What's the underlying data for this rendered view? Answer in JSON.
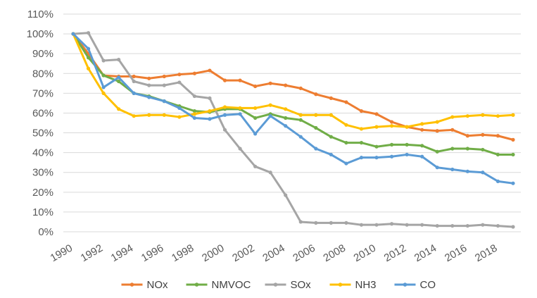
{
  "chart_data": {
    "type": "line",
    "title": "",
    "xlabel": "",
    "ylabel": "",
    "ylim": [
      0,
      110
    ],
    "y_ticks": [
      "0%",
      "10%",
      "20%",
      "30%",
      "40%",
      "50%",
      "60%",
      "70%",
      "80%",
      "90%",
      "100%",
      "110%"
    ],
    "x": [
      1990,
      1991,
      1992,
      1993,
      1994,
      1995,
      1996,
      1997,
      1998,
      1999,
      2000,
      2001,
      2002,
      2003,
      2004,
      2005,
      2006,
      2007,
      2008,
      2009,
      2010,
      2011,
      2012,
      2013,
      2014,
      2015,
      2016,
      2017,
      2018,
      2019
    ],
    "x_tick_labels": [
      "1990",
      "1992",
      "1994",
      "1996",
      "1998",
      "2000",
      "2002",
      "2004",
      "2006",
      "2008",
      "2010",
      "2012",
      "2014",
      "2016",
      "2018"
    ],
    "grid": true,
    "legend_position": "bottom",
    "series": [
      {
        "name": "NOx",
        "color": "#ED7D31",
        "values": [
          100,
          90,
          79,
          78.5,
          78.5,
          77.5,
          78.5,
          79.5,
          80,
          81.5,
          76.5,
          76.5,
          73.5,
          75,
          74,
          72.5,
          69.5,
          67.5,
          65.5,
          61,
          59.5,
          55.5,
          53,
          51.5,
          51,
          51.5,
          48.5,
          49,
          48.5,
          46.5
        ]
      },
      {
        "name": "NMVOC",
        "color": "#70AD47",
        "values": [
          100,
          88,
          79,
          76,
          70,
          68.5,
          66,
          63.5,
          61,
          60.5,
          62,
          62,
          57.5,
          59.5,
          57.5,
          56.5,
          52.5,
          48,
          45,
          45,
          43,
          44,
          44,
          43.5,
          40.5,
          42,
          42,
          41.5,
          39,
          39
        ]
      },
      {
        "name": "SOx",
        "color": "#A5A5A5",
        "values": [
          100,
          100.5,
          86.5,
          87,
          76,
          74,
          74,
          75.5,
          68.5,
          67.5,
          51.5,
          42,
          33,
          30,
          18.5,
          5,
          4.5,
          4.5,
          4.5,
          3.5,
          3.5,
          4,
          3.5,
          3.5,
          3,
          3,
          3,
          3.5,
          3,
          2.5
        ]
      },
      {
        "name": "NH3",
        "color": "#FFC000",
        "values": [
          100,
          82.5,
          70,
          62,
          58.5,
          59,
          59,
          58,
          59.5,
          61,
          63,
          62.5,
          62.5,
          64,
          62,
          59,
          59,
          59,
          54,
          52,
          53,
          53.5,
          53,
          54.5,
          55.5,
          58,
          58.5,
          59,
          58.5,
          59
        ]
      },
      {
        "name": "CO",
        "color": "#5B9BD5",
        "values": [
          100,
          92.5,
          73,
          78,
          70,
          68,
          66,
          62.5,
          57.5,
          57,
          59,
          59.5,
          49.5,
          58.5,
          53.5,
          48,
          42,
          39,
          34.5,
          37.5,
          37.5,
          38,
          39,
          38,
          32.5,
          31.5,
          30.5,
          30,
          25.5,
          24.5
        ]
      }
    ]
  }
}
